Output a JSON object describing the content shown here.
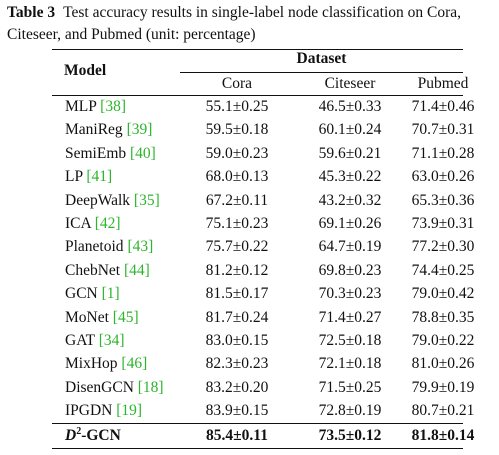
{
  "caption": {
    "label": "Table 3",
    "text": "Test accuracy results in single-label node classification on Cora, Citeseer, and Pubmed (unit: percentage)"
  },
  "header": {
    "model": "Model",
    "dataset": "Dataset",
    "columns": [
      "Cora",
      "Citeseer",
      "Pubmed"
    ]
  },
  "rows": [
    {
      "model": "MLP",
      "ref": "[38]",
      "cora": "55.1±0.25",
      "citeseer": "46.5±0.33",
      "pubmed": "71.4±0.46"
    },
    {
      "model": "ManiReg",
      "ref": "[39]",
      "cora": "59.5±0.18",
      "citeseer": "60.1±0.24",
      "pubmed": "70.7±0.31"
    },
    {
      "model": "SemiEmb",
      "ref": "[40]",
      "cora": "59.0±0.23",
      "citeseer": "59.6±0.21",
      "pubmed": "71.1±0.28"
    },
    {
      "model": "LP",
      "ref": "[41]",
      "cora": "68.0±0.13",
      "citeseer": "45.3±0.22",
      "pubmed": "63.0±0.26"
    },
    {
      "model": "DeepWalk",
      "ref": "[35]",
      "cora": "67.2±0.11",
      "citeseer": "43.2±0.32",
      "pubmed": "65.3±0.36"
    },
    {
      "model": "ICA",
      "ref": "[42]",
      "cora": "75.1±0.23",
      "citeseer": "69.1±0.26",
      "pubmed": "73.9±0.31"
    },
    {
      "model": "Planetoid",
      "ref": "[43]",
      "cora": "75.7±0.22",
      "citeseer": "64.7±0.19",
      "pubmed": "77.2±0.30"
    },
    {
      "model": "ChebNet",
      "ref": "[44]",
      "cora": "81.2±0.12",
      "citeseer": "69.8±0.23",
      "pubmed": "74.4±0.25"
    },
    {
      "model": "GCN",
      "ref": "[1]",
      "cora": "81.5±0.17",
      "citeseer": "70.3±0.23",
      "pubmed": "79.0±0.42"
    },
    {
      "model": "MoNet",
      "ref": "[45]",
      "cora": "81.7±0.24",
      "citeseer": "71.4±0.27",
      "pubmed": "78.8±0.35"
    },
    {
      "model": "GAT",
      "ref": "[34]",
      "cora": "83.0±0.15",
      "citeseer": "72.5±0.18",
      "pubmed": "79.0±0.22"
    },
    {
      "model": "MixHop",
      "ref": "[46]",
      "cora": "82.3±0.23",
      "citeseer": "72.1±0.18",
      "pubmed": "81.0±0.26"
    },
    {
      "model": "DisenGCN",
      "ref": "[18]",
      "cora": "83.2±0.20",
      "citeseer": "71.5±0.25",
      "pubmed": "79.9±0.19"
    },
    {
      "model": "IPGDN",
      "ref": "[19]",
      "cora": "83.9±0.15",
      "citeseer": "72.8±0.19",
      "pubmed": "80.7±0.21"
    }
  ],
  "final_row": {
    "model_base": "D",
    "model_sup": "2",
    "model_suffix": "-GCN",
    "cora": "85.4±0.11",
    "citeseer": "73.5±0.12",
    "pubmed": "81.8±0.14"
  },
  "colors": {
    "citation": "#2db52d"
  }
}
